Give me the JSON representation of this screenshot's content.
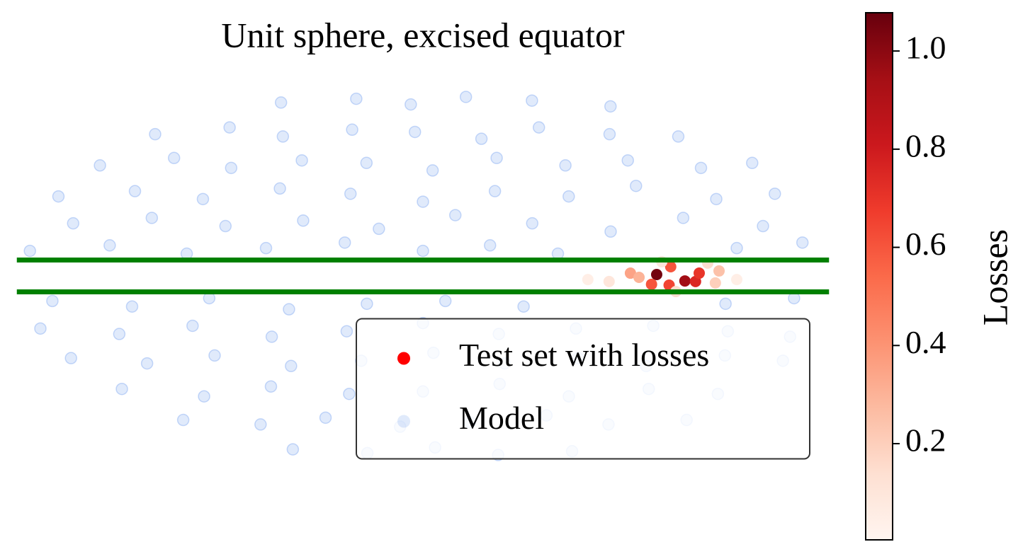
{
  "chart_data": {
    "type": "scatter",
    "projection": "mollweide",
    "title": "Unit sphere, excised equator",
    "xlim": [
      -180,
      180
    ],
    "ylim": [
      -90,
      90
    ],
    "hlines": [
      -5.7,
      5.7
    ],
    "hline_color": "#008000",
    "legend": "lower right",
    "series": [
      {
        "name": "Test set with losses",
        "color": "#ff0000",
        "colormap": "Reds",
        "x": [
          103.3,
          115.8,
          120.5,
          122.1,
          109.6,
          108.9,
          101.1,
          91.7,
          95.5,
          130.9,
          129.3,
          112.1,
          82.3,
          126.1,
          105.8,
          72.9,
          138.7
        ],
        "y": [
          0.5,
          -1.8,
          -2.0,
          1.0,
          3.3,
          -3.3,
          -3.0,
          1.0,
          -0.5,
          1.8,
          -2.5,
          -5.6,
          -2.0,
          4.6,
          5.1,
          -1.3,
          -1.3
        ],
        "values": [
          1.05,
          0.95,
          0.75,
          0.7,
          0.6,
          0.65,
          0.6,
          0.35,
          0.3,
          0.25,
          0.2,
          0.15,
          0.1,
          0.15,
          0.1,
          0.05,
          0.05
        ]
      },
      {
        "name": "Model",
        "color": "#6495ed",
        "x": [
          -120,
          -60,
          -10,
          40,
          95,
          150,
          -165,
          -125,
          -85,
          -45,
          -5,
          35,
          75,
          115,
          155,
          -170,
          -135,
          -100,
          -65,
          -30,
          5,
          40,
          75,
          110,
          145,
          175,
          -175,
          -140,
          -105,
          -70,
          -35,
          0,
          35,
          70,
          105,
          140,
          170,
          -160,
          -125,
          -90,
          -55,
          -20,
          15,
          50,
          85,
          120,
          155,
          -175,
          -140,
          -105,
          -70,
          -35,
          0,
          30,
          60,
          140,
          170,
          -165,
          -130,
          -95,
          -60,
          -25,
          10,
          45,
          135,
          165,
          -175,
          -140,
          -105,
          -70,
          -35,
          0,
          35,
          70,
          105,
          140,
          170,
          -170,
          -135,
          -100,
          -65,
          -30,
          5,
          40,
          75,
          110,
          145,
          175,
          -160,
          -120,
          -80,
          -40,
          0,
          40,
          80,
          120,
          160,
          -150,
          -105,
          -60,
          -15,
          30,
          75,
          120,
          165,
          -110,
          -50,
          10,
          70,
          130
        ],
        "y": [
          69,
          71,
          68,
          72,
          70,
          67,
          54,
          57,
          53,
          56,
          55,
          52,
          57,
          54,
          53,
          41,
          44,
          40,
          43,
          42,
          39,
          44,
          41,
          43,
          40,
          42,
          29,
          31,
          28,
          32,
          30,
          27,
          31,
          29,
          33,
          28,
          30,
          19,
          21,
          18,
          20,
          17,
          22,
          19,
          16,
          21,
          18,
          9,
          11,
          8,
          10,
          12,
          9,
          11,
          8,
          10,
          12,
          -9,
          -11,
          -8,
          -12,
          -10,
          -9,
          -11,
          -10,
          -8,
          -19,
          -21,
          -18,
          -22,
          -20,
          -17,
          -21,
          -19,
          -18,
          -20,
          -22,
          -30,
          -32,
          -29,
          -33,
          -31,
          -28,
          -32,
          -30,
          -33,
          -29,
          -31,
          -42,
          -45,
          -41,
          -44,
          -43,
          -40,
          -45,
          -42,
          -44,
          -55,
          -57,
          -54,
          -58,
          -56,
          -53,
          -57,
          -55,
          -69,
          -71,
          -68,
          -72,
          -70
        ]
      }
    ],
    "colorbar": {
      "label": "Losses",
      "lim": [
        0.004,
        1.078
      ],
      "ticks": [
        0.2,
        0.4,
        0.6,
        0.8,
        {
          "value": 1.0,
          "label": "1.0"
        }
      ]
    }
  }
}
